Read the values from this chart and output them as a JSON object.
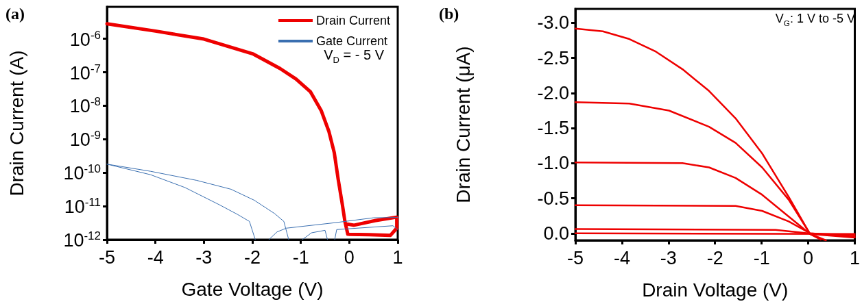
{
  "chart_data": [
    {
      "type": "line",
      "title": "(a)",
      "xlabel": "Gate Voltage (V)",
      "ylabel": "Drain Current (A)",
      "log": "y",
      "legend": "top right",
      "grid": false,
      "marker": "none",
      "line_style": "solid",
      "xlim": [
        -5,
        1
      ],
      "xticks": [
        -5,
        -4,
        -3,
        -2,
        -1,
        0,
        1
      ],
      "ylim": [
        1e-12,
        9e-06
      ],
      "yticks": [
        {
          "value": 1e-12,
          "label": "10$^{-12}$"
        },
        {
          "value": 1e-11,
          "label": "10$^{-11}$"
        },
        {
          "value": 1e-10,
          "label": "10$^{-10}$"
        },
        {
          "value": 1e-09,
          "label": "10$^{-9}$"
        },
        {
          "value": 1e-08,
          "label": "10$^{-8}$"
        },
        {
          "value": 1e-07,
          "label": "10$^{-7}$"
        },
        {
          "value": 1e-06,
          "label": "10$^{-6}$"
        }
      ],
      "annotations": [
        "V$_{D}$ = - 5 V"
      ],
      "series": [
        {
          "name": "Drain Current",
          "color": "#ee0000",
          "x": [
            -5,
            -4,
            -3,
            -1.98,
            -1.43,
            -1.1,
            -0.8,
            -0.58,
            -0.42,
            -0.31,
            -0.23,
            -0.14,
            -0.09,
            -0.03,
            0.41,
            0.85,
            0.98,
            0.98,
            0.53,
            0.1,
            -0.03
          ],
          "values": [
            2.8e-06,
            1.7e-06,
            9.8e-07,
            3.5e-07,
            1.3e-07,
            6.3e-08,
            2.6e-08,
            7.2e-09,
            1.7e-09,
            4e-10,
            6.5e-11,
            1.05e-11,
            3.5e-12,
            1.45e-12,
            1.4e-12,
            1.35e-12,
            2.2e-12,
            4.7e-12,
            3.7e-12,
            2.7e-12,
            2.9e-12
          ]
        },
        {
          "name": "Gate Current",
          "color": "#3a6fb0",
          "x": [
            -5,
            -4.1,
            -3.15,
            -2.44,
            -1.96,
            -1.54,
            -1.35,
            -1.25,
            null,
            -5,
            -4.1,
            -3.39,
            -2.68,
            -2.3,
            -2.06,
            -1.94,
            null,
            -1.66,
            -1.49,
            -1.3,
            -0.3,
            0.5,
            1,
            null,
            -0.97,
            -0.78,
            -0.5,
            -0.45,
            null,
            -0.3,
            -0.26,
            0.9,
            1
          ],
          "values": [
            1.8e-10,
            1.1e-10,
            5.9e-11,
            3.2e-11,
            1.5e-11,
            6e-12,
            3.5e-12,
            1e-12,
            null,
            1.8e-10,
            8.7e-11,
            3.6e-11,
            1.1e-11,
            5.6e-12,
            3.5e-12,
            1e-12,
            null,
            1e-12,
            1.7e-12,
            2.2e-12,
            3.2e-12,
            4.5e-12,
            4.6e-12,
            null,
            1e-12,
            1.6e-12,
            1.9e-12,
            1e-12,
            null,
            1e-12,
            2e-12,
            2.6e-12,
            2e-12
          ]
        }
      ]
    },
    {
      "type": "line",
      "title": "(b)",
      "xlabel": "Drain Voltage (V)",
      "ylabel": "Drain Current (μA)",
      "grid": false,
      "marker": "none",
      "line_style": "solid",
      "xlim": [
        -5,
        1
      ],
      "xticks": [
        -5,
        -4,
        -3,
        -2,
        -1,
        0,
        1
      ],
      "ylim": [
        0.1,
        -3.2
      ],
      "yticks": [
        {
          "value": 0,
          "label": "0.0"
        },
        -0.5,
        {
          "value": -1,
          "label": "-1.0"
        },
        -1.5,
        {
          "value": -2,
          "label": "-2.0"
        },
        -2.5,
        {
          "value": -3,
          "label": "-3.0"
        }
      ],
      "annotations": [
        "V$_{G}$: 1 V to -5 V"
      ],
      "series": [
        {
          "color": "#ee0000",
          "x": [
            -5,
            -4.41,
            -3.84,
            -3.27,
            -2.7,
            -2.13,
            -1.56,
            -0.99,
            -0.42,
            0.04,
            0.38
          ],
          "values": [
            -2.92,
            -2.88,
            -2.77,
            -2.59,
            -2.34,
            -2.03,
            -1.64,
            -1.14,
            -0.52,
            0.01,
            0.1
          ]
        },
        {
          "color": "#ee0000",
          "x": [
            -5,
            -3.84,
            -2.99,
            -2.13,
            -1.56,
            -0.99,
            -0.42,
            0.04,
            0.27
          ],
          "values": [
            -1.87,
            -1.85,
            -1.75,
            -1.52,
            -1.29,
            -0.94,
            -0.48,
            0.01,
            0.09
          ]
        },
        {
          "color": "#ee0000",
          "x": [
            -5,
            -2.7,
            -2.13,
            -1.56,
            -0.99,
            -0.42,
            0.04,
            1
          ],
          "values": [
            -1.01,
            -1.0,
            -0.94,
            -0.79,
            -0.55,
            -0.24,
            0.01,
            0.06
          ]
        },
        {
          "color": "#ee0000",
          "x": [
            -5,
            -1.56,
            -0.99,
            -0.42,
            0.04,
            1
          ],
          "values": [
            -0.4,
            -0.39,
            -0.32,
            -0.17,
            0.0,
            0.05
          ]
        },
        {
          "color": "#ee0000",
          "x": [
            -5,
            -0.7,
            0,
            1
          ],
          "values": [
            -0.06,
            -0.05,
            0,
            0.03
          ]
        },
        {
          "color": "#ee0000",
          "x": [
            -5,
            1
          ],
          "values": [
            0,
            0.01
          ]
        }
      ]
    }
  ]
}
